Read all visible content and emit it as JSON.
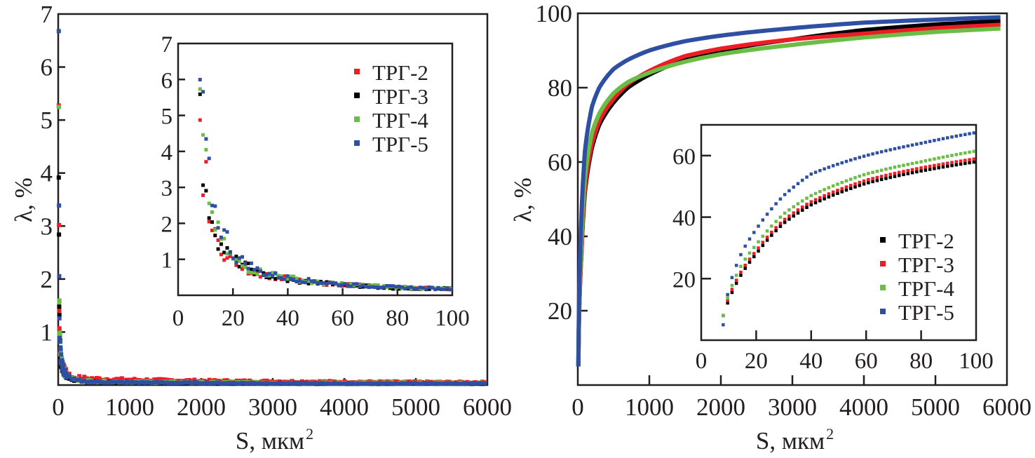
{
  "chart_data": [
    {
      "type": "scatter",
      "panel": "left",
      "xlabel": "S, мкм",
      "xlabel_sup": "2",
      "ylabel": "λ, %",
      "xlim": [
        0,
        6000
      ],
      "ylim": [
        0,
        7
      ],
      "xticks": [
        "0",
        "1000",
        "2000",
        "3000",
        "4000",
        "5000",
        "6000"
      ],
      "yticks": [
        "1",
        "2",
        "3",
        "4",
        "5",
        "6",
        "7"
      ],
      "series": [
        {
          "name": "ТРГ-2",
          "color": "#ee1c25",
          "x": [
            8,
            10,
            15,
            20,
            40,
            100,
            200,
            500,
            1000,
            2000,
            4000,
            6000
          ],
          "y": [
            5.3,
            3.4,
            1.4,
            1.0,
            0.45,
            0.25,
            0.15,
            0.12,
            0.1,
            0.08,
            0.06,
            0.05
          ]
        },
        {
          "name": "ТРГ-3",
          "color": "#000000",
          "x": [
            8,
            10,
            15,
            20,
            40,
            100,
            200,
            500,
            1000,
            2000,
            4000,
            6000
          ],
          "y": [
            5.1,
            3.5,
            1.4,
            1.0,
            0.42,
            0.2,
            0.1,
            0.06,
            0.05,
            0.04,
            0.03,
            0.03
          ]
        },
        {
          "name": "ТРГ-4",
          "color": "#6abd45",
          "x": [
            8,
            10,
            15,
            20,
            40,
            100,
            200,
            500,
            1000,
            2000,
            4000,
            6000
          ],
          "y": [
            5.4,
            3.8,
            1.7,
            1.0,
            0.5,
            0.2,
            0.12,
            0.07,
            0.06,
            0.05,
            0.04,
            0.04
          ]
        },
        {
          "name": "ТРГ-5",
          "color": "#2e4fa2",
          "x": [
            8,
            10,
            15,
            20,
            40,
            100,
            200,
            500,
            1000,
            2000,
            4000,
            6000
          ],
          "y": [
            5.9,
            4.2,
            1.9,
            1.1,
            0.48,
            0.2,
            0.1,
            0.06,
            0.05,
            0.04,
            0.03,
            0.03
          ]
        }
      ],
      "inset": {
        "xlim": [
          0,
          100
        ],
        "ylim": [
          0,
          7
        ],
        "xticks": [
          "0",
          "20",
          "40",
          "60",
          "80",
          "100"
        ],
        "yticks": [
          "1",
          "2",
          "3",
          "4",
          "5",
          "6",
          "7"
        ],
        "legend_position": "top-right",
        "series": [
          {
            "name": "ТРГ-2",
            "color": "#ee1c25",
            "x": [
              8,
              9,
              10,
              12,
              15,
              18,
              20,
              25,
              30,
              40,
              50,
              60,
              80,
              100
            ],
            "y": [
              5.3,
              2.7,
              3.4,
              1.9,
              1.4,
              1.0,
              1.0,
              0.7,
              0.6,
              0.45,
              0.35,
              0.3,
              0.22,
              0.18
            ]
          },
          {
            "name": "ТРГ-3",
            "color": "#000000",
            "x": [
              8,
              9,
              10,
              12,
              15,
              18,
              20,
              25,
              30,
              40,
              50,
              60,
              80,
              100
            ],
            "y": [
              5.1,
              3.4,
              2.6,
              2.3,
              1.4,
              1.2,
              1.0,
              0.8,
              0.6,
              0.42,
              0.35,
              0.3,
              0.2,
              0.18
            ]
          },
          {
            "name": "ТРГ-4",
            "color": "#6abd45",
            "x": [
              8,
              9,
              10,
              12,
              15,
              18,
              20,
              25,
              30,
              40,
              50,
              60,
              80,
              100
            ],
            "y": [
              5.4,
              4.1,
              3.7,
              2.3,
              1.7,
              1.2,
              1.0,
              0.75,
              0.65,
              0.5,
              0.35,
              0.3,
              0.22,
              0.18
            ]
          },
          {
            "name": "ТРГ-5",
            "color": "#2e4fa2",
            "x": [
              8,
              9,
              10,
              12,
              15,
              18,
              20,
              25,
              30,
              40,
              50,
              60,
              80,
              100
            ],
            "y": [
              5.9,
              5.1,
              4.2,
              2.9,
              1.9,
              1.6,
              1.1,
              0.9,
              0.65,
              0.48,
              0.38,
              0.3,
              0.22,
              0.18
            ]
          }
        ]
      }
    },
    {
      "type": "line",
      "panel": "right",
      "xlabel": "S, мкм",
      "xlabel_sup": "2",
      "ylabel": "λ, %",
      "xlim": [
        0,
        6000
      ],
      "ylim": [
        0,
        100
      ],
      "xticks": [
        "0",
        "1000",
        "2000",
        "3000",
        "4000",
        "5000",
        "6000"
      ],
      "yticks": [
        "20",
        "40",
        "60",
        "80",
        "100"
      ],
      "series": [
        {
          "name": "ТРГ-2",
          "color": "#000000",
          "x": [
            8,
            50,
            100,
            200,
            300,
            500,
            700,
            1000,
            1500,
            2000,
            3000,
            4000,
            5000,
            6000
          ],
          "y": [
            5,
            35,
            52,
            64,
            70,
            76,
            80,
            83.5,
            87.5,
            90,
            93,
            95.5,
            97,
            98
          ]
        },
        {
          "name": "ТРГ-3",
          "color": "#ee1c25",
          "x": [
            8,
            50,
            100,
            200,
            300,
            500,
            700,
            1000,
            1500,
            2000,
            3000,
            4000,
            5000,
            6000
          ],
          "y": [
            5,
            35,
            53,
            65,
            71,
            77,
            81,
            84.5,
            88.5,
            90.5,
            93,
            94.5,
            96,
            97
          ]
        },
        {
          "name": "ТРГ-4",
          "color": "#6abd45",
          "x": [
            8,
            50,
            100,
            200,
            300,
            500,
            700,
            1000,
            1500,
            2000,
            3000,
            4000,
            5000,
            6000
          ],
          "y": [
            5,
            38,
            56,
            68,
            73,
            78.5,
            81.5,
            84,
            87,
            89,
            91.5,
            93.5,
            95,
            96
          ]
        },
        {
          "name": "ТРГ-5",
          "color": "#2e4fa2",
          "x": [
            8,
            50,
            100,
            200,
            300,
            500,
            700,
            1000,
            1500,
            2000,
            3000,
            4000,
            5000,
            6000
          ],
          "y": [
            5,
            45,
            63,
            75,
            80,
            85,
            87.5,
            90,
            92.5,
            94,
            96,
            97.5,
            98.3,
            99
          ]
        }
      ],
      "inset": {
        "xlim": [
          0,
          100
        ],
        "ylim": [
          0,
          70
        ],
        "xticks": [
          "0",
          "20",
          "40",
          "60",
          "80",
          "100"
        ],
        "yticks": [
          "20",
          "40",
          "60"
        ],
        "legend_position": "bottom-right",
        "series": [
          {
            "name": "ТРГ-2",
            "color": "#000000",
            "x": [
              8,
              10,
              15,
              20,
              30,
              40,
              60,
              80,
              100
            ],
            "y": [
              8,
              13,
              22,
              28,
              38,
              44,
              51,
              55,
              58
            ]
          },
          {
            "name": "ТРГ-3",
            "color": "#ee1c25",
            "x": [
              8,
              10,
              15,
              20,
              30,
              40,
              60,
              80,
              100
            ],
            "y": [
              8,
              14,
              23,
              29,
              39,
              45,
              52,
              56,
              59
            ]
          },
          {
            "name": "ТРГ-4",
            "color": "#6abd45",
            "x": [
              8,
              10,
              15,
              20,
              30,
              40,
              60,
              80,
              100
            ],
            "y": [
              8,
              15,
              25,
              31,
              41,
              47,
              54,
              58,
              61.5
            ]
          },
          {
            "name": "ТРГ-5",
            "color": "#2e4fa2",
            "x": [
              8,
              10,
              15,
              20,
              30,
              40,
              60,
              80,
              100
            ],
            "y": [
              5,
              17,
              29,
              36,
              47,
              54,
              60,
              64,
              67.5
            ]
          }
        ]
      }
    }
  ]
}
